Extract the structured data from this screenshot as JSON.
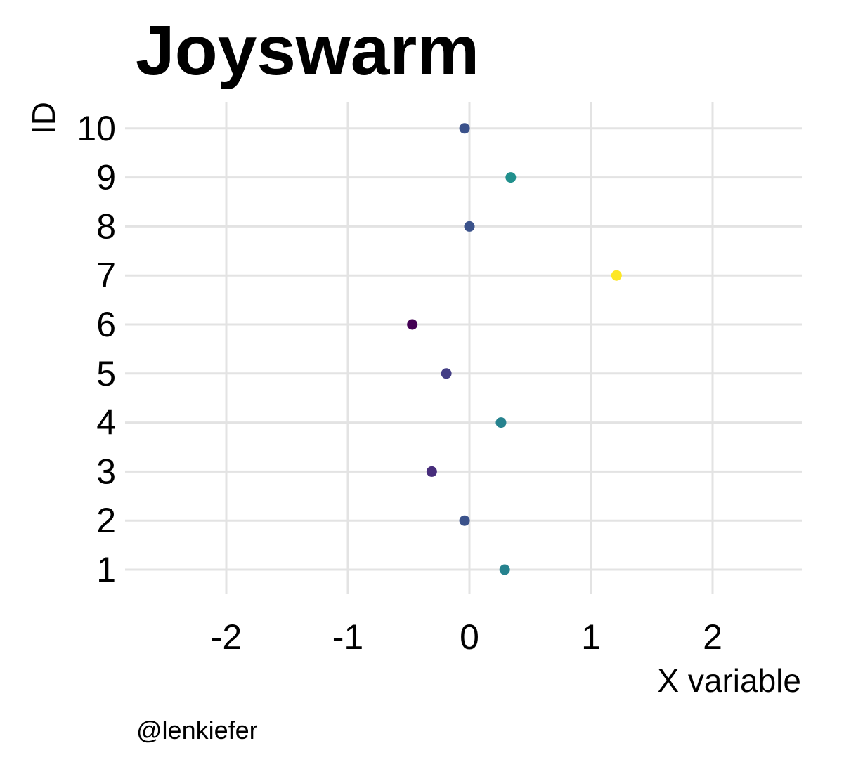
{
  "chart_data": {
    "type": "scatter",
    "title": "Joyswarm",
    "xlabel": "X variable",
    "ylabel": "ID",
    "caption": "@lenkiefer",
    "xlim": [
      -2.8,
      2.8
    ],
    "ylim": [
      0.5,
      10.5
    ],
    "xticks": [
      -2,
      -1,
      0,
      1,
      2
    ],
    "yticks": [
      1,
      2,
      3,
      4,
      5,
      6,
      7,
      8,
      9,
      10
    ],
    "grid": true,
    "legend": "none",
    "color_scale": "viridis",
    "points": [
      {
        "id": 1,
        "x": 0.29,
        "color": "#26828e"
      },
      {
        "id": 2,
        "x": -0.04,
        "color": "#3b528b"
      },
      {
        "id": 3,
        "x": -0.31,
        "color": "#472d7b"
      },
      {
        "id": 4,
        "x": 0.26,
        "color": "#26828e"
      },
      {
        "id": 5,
        "x": -0.19,
        "color": "#433e85"
      },
      {
        "id": 6,
        "x": -0.47,
        "color": "#440154"
      },
      {
        "id": 7,
        "x": 1.21,
        "color": "#fde725"
      },
      {
        "id": 8,
        "x": 0.0,
        "color": "#3b528b"
      },
      {
        "id": 9,
        "x": 0.34,
        "color": "#21908d"
      },
      {
        "id": 10,
        "x": -0.04,
        "color": "#3b528b"
      }
    ]
  }
}
